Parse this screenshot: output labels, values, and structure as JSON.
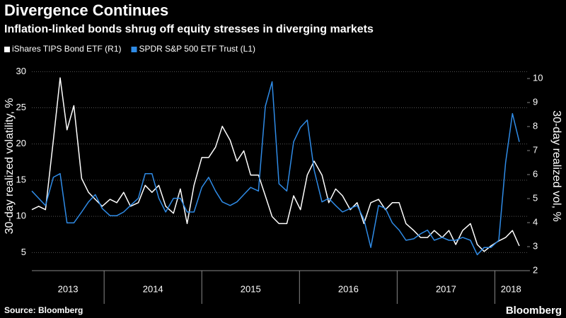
{
  "chart_data": {
    "type": "line",
    "title": "Divergence Continues",
    "subtitle": "Inflation-linked bonds shrug off equity stresses in diverging markets",
    "ylabel": "30-day realized volatility, %",
    "y2label": "30-day realized vol, %",
    "source": "Source: Bloomberg",
    "brand": "Bloomberg",
    "xlim": [
      2013.26,
      2018.33
    ],
    "xticks": [
      2013,
      2014,
      2015,
      2016,
      2017,
      2018
    ],
    "ylim": [
      2.5,
      31.3
    ],
    "yticks": [
      5,
      10,
      15,
      20,
      25,
      30
    ],
    "y2lim": [
      2,
      10.68
    ],
    "y2ticks": [
      2,
      3,
      4,
      5,
      6,
      7,
      8,
      9,
      10
    ],
    "grid": true,
    "x": [
      2013.26,
      2013.33,
      2013.4,
      2013.48,
      2013.55,
      2013.62,
      2013.69,
      2013.77,
      2013.84,
      2013.91,
      2013.98,
      2014.06,
      2014.13,
      2014.2,
      2014.27,
      2014.35,
      2014.42,
      2014.49,
      2014.56,
      2014.63,
      2014.71,
      2014.78,
      2014.85,
      2014.92,
      2015.0,
      2015.07,
      2015.14,
      2015.21,
      2015.29,
      2015.36,
      2015.43,
      2015.5,
      2015.58,
      2015.65,
      2015.72,
      2015.79,
      2015.87,
      2015.94,
      2016.01,
      2016.08,
      2016.15,
      2016.23,
      2016.3,
      2016.37,
      2016.44,
      2016.52,
      2016.59,
      2016.66,
      2016.73,
      2016.81,
      2016.88,
      2016.95,
      2017.02,
      2017.09,
      2017.17,
      2017.24,
      2017.31,
      2017.38,
      2017.46,
      2017.53,
      2017.6,
      2017.67,
      2017.75,
      2017.82,
      2017.89,
      2017.96,
      2018.04,
      2018.11,
      2018.18,
      2018.25
    ],
    "series": [
      {
        "name": "iShares TIPS Bond ETF  (R1)",
        "color": "#ffffff",
        "axis": "y2",
        "values": [
          4.54,
          4.68,
          4.54,
          7.43,
          10.03,
          7.86,
          8.87,
          5.84,
          5.26,
          4.97,
          4.68,
          4.97,
          4.83,
          5.26,
          4.68,
          4.83,
          5.55,
          5.26,
          5.55,
          4.68,
          4.39,
          5.4,
          3.96,
          5.55,
          6.71,
          6.71,
          7.14,
          8.01,
          7.43,
          6.56,
          6.99,
          5.98,
          5.98,
          5.12,
          4.25,
          3.96,
          3.96,
          5.12,
          4.54,
          5.98,
          6.56,
          5.98,
          4.83,
          5.4,
          5.12,
          4.54,
          4.83,
          3.96,
          4.83,
          4.97,
          4.54,
          4.83,
          4.83,
          3.96,
          3.67,
          3.38,
          3.38,
          3.67,
          3.38,
          3.67,
          3.09,
          3.67,
          3.96,
          3.09,
          2.8,
          3.03,
          3.24,
          3.38,
          3.67,
          3.03
        ]
      },
      {
        "name": "SPDR S&P 500 ETF Trust  (L1)",
        "color": "#2f8be6",
        "axis": "y",
        "values": [
          13.5,
          12.5,
          11.5,
          15.4,
          15.9,
          9.1,
          9.1,
          10.6,
          12.0,
          13.0,
          11.1,
          10.1,
          10.1,
          10.6,
          11.5,
          12.5,
          15.9,
          15.9,
          12.5,
          10.6,
          12.5,
          12.5,
          10.6,
          10.6,
          14.0,
          15.4,
          13.5,
          12.0,
          11.5,
          12.0,
          13.0,
          14.0,
          13.5,
          25.2,
          28.6,
          14.5,
          13.5,
          20.3,
          22.3,
          23.3,
          16.4,
          12.0,
          12.5,
          11.5,
          10.6,
          11.1,
          11.5,
          9.6,
          5.7,
          11.5,
          11.1,
          9.1,
          8.1,
          6.7,
          6.9,
          7.6,
          8.1,
          6.7,
          7.1,
          6.7,
          6.7,
          7.1,
          6.7,
          4.7,
          5.7,
          5.7,
          6.7,
          17.4,
          24.2,
          20.3
        ]
      }
    ]
  }
}
